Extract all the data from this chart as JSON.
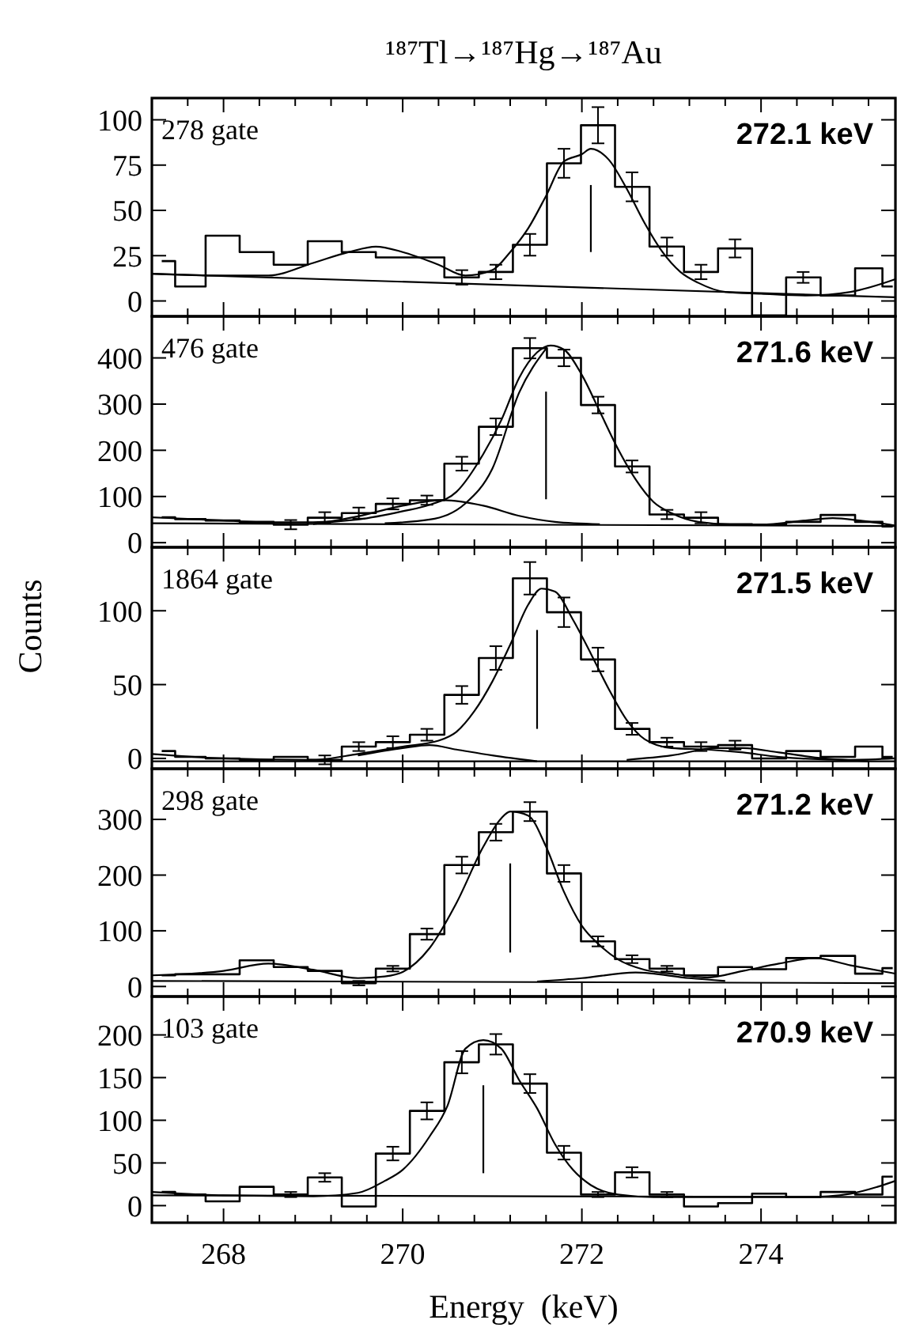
{
  "chart_data": [
    {
      "type": "step",
      "title": "¹⁸⁷Tl→¹⁸⁷Hg→¹⁸⁷Au",
      "annotations": [
        "278 gate",
        "272.1 keV"
      ],
      "tick_labels": "y",
      "series": [
        {
          "type": "step",
          "color": "#000000",
          "x": [
            267.31,
            267.61,
            267.99,
            268.37,
            268.75,
            269.13,
            269.51,
            269.89,
            270.27,
            270.66,
            271.04,
            271.42,
            271.8,
            272.18,
            272.56,
            272.95,
            273.33,
            273.71,
            274.09,
            274.47,
            274.86,
            275.24,
            275.47
          ],
          "values": [
            22,
            8,
            36,
            27,
            20,
            33,
            27,
            24,
            24,
            13,
            16,
            31,
            76,
            97,
            63,
            30,
            16,
            29,
            -8,
            13,
            3,
            18,
            8
          ],
          "errors": [
            null,
            null,
            null,
            null,
            null,
            null,
            null,
            null,
            null,
            4,
            4,
            6,
            8,
            10,
            8,
            5,
            4,
            5,
            null,
            3,
            null,
            null,
            null
          ]
        },
        {
          "type": "line",
          "color": "#000000",
          "x": [
            267.2,
            268,
            268.5,
            269,
            269.4,
            269.7,
            270,
            270.4,
            270.7,
            271,
            271.2,
            271.4,
            271.6,
            271.8,
            272,
            272.1,
            272.3,
            272.5,
            272.7,
            272.9,
            273.1,
            273.3,
            273.6,
            274,
            274.5,
            275,
            275.5
          ],
          "values": [
            15,
            14,
            14,
            21,
            27,
            30,
            27,
            20,
            14,
            17,
            27,
            40,
            58,
            77,
            81,
            84,
            78,
            62,
            43,
            27,
            16,
            10,
            5,
            4,
            3,
            5,
            12
          ]
        },
        {
          "type": "line",
          "color": "#000000",
          "x": [
            267.2,
            275.5
          ],
          "values": [
            15,
            2
          ]
        },
        {
          "type": "line",
          "color": "#000000",
          "x": [
            272.1,
            272.1
          ],
          "values": [
            27,
            64
          ]
        }
      ],
      "xlim": [
        267.2,
        275.5
      ],
      "xticks": [
        {
          "value": 267.6,
          "label": null
        },
        268,
        {
          "value": 268.4,
          "label": null
        },
        {
          "value": 268.8,
          "label": null
        },
        {
          "value": 269.2,
          "label": null
        },
        {
          "value": 269.6,
          "label": null
        },
        270,
        {
          "value": 270.4,
          "label": null
        },
        {
          "value": 270.8,
          "label": null
        },
        {
          "value": 271.2,
          "label": null
        },
        {
          "value": 271.6,
          "label": null
        },
        272,
        {
          "value": 272.4,
          "label": null
        },
        {
          "value": 272.8,
          "label": null
        },
        {
          "value": 273.2,
          "label": null
        },
        {
          "value": 273.6,
          "label": null
        },
        274,
        {
          "value": 274.4,
          "label": null
        },
        {
          "value": 274.8,
          "label": null
        },
        {
          "value": 275.2,
          "label": null
        }
      ],
      "ylim": [
        -8.5,
        112
      ],
      "yticks": [
        0,
        25,
        50,
        75,
        100
      ]
    },
    {
      "type": "step",
      "annotations": [
        "476 gate",
        "271.6 keV"
      ],
      "tick_labels": "y",
      "series": [
        {
          "type": "step",
          "color": "#000000",
          "x": [
            267.31,
            267.61,
            267.99,
            268.37,
            268.75,
            269.13,
            269.51,
            269.89,
            270.27,
            270.66,
            271.04,
            271.42,
            271.8,
            272.18,
            272.56,
            272.95,
            273.33,
            273.71,
            274.09,
            274.47,
            274.86,
            275.24,
            275.47
          ],
          "values": [
            55,
            51,
            48,
            45,
            39,
            54,
            64,
            84,
            92,
            171,
            251,
            421,
            400,
            298,
            165,
            61,
            54,
            40,
            39,
            45,
            60,
            45,
            35
          ],
          "errors": [
            null,
            null,
            null,
            null,
            10,
            12,
            12,
            12,
            10,
            15,
            18,
            22,
            18,
            18,
            13,
            10,
            12,
            null,
            null,
            null,
            null,
            null,
            null
          ]
        },
        {
          "type": "line",
          "color": "#000000",
          "x": [
            267.2,
            268,
            268.5,
            269,
            269.5,
            270,
            270.3,
            270.6,
            270.9,
            271.1,
            271.3,
            271.5,
            271.65,
            271.8,
            272,
            272.2,
            272.4,
            272.6,
            272.8,
            273,
            273.3,
            273.7,
            274,
            274.5,
            274.8,
            275.1,
            275.5
          ],
          "values": [
            55,
            48,
            44,
            44,
            50,
            68,
            82,
            110,
            192,
            265,
            357,
            412,
            427,
            418,
            363,
            284,
            204,
            137,
            88,
            64,
            45,
            39,
            39,
            48,
            53,
            48,
            37
          ]
        },
        {
          "type": "line",
          "color": "#000000",
          "x": [
            269.8,
            270.3,
            270.7,
            271,
            271.3,
            271.6
          ],
          "values": [
            42,
            50,
            85,
            160,
            325,
            420
          ]
        },
        {
          "type": "line",
          "color": "#000000",
          "x": [
            269,
            269.5,
            270,
            270.45,
            270.9,
            271.3,
            271.7,
            272.2
          ],
          "values": [
            40,
            57,
            80,
            92,
            80,
            58,
            45,
            40
          ]
        },
        {
          "type": "line",
          "color": "#000000",
          "x": [
            267.2,
            275.5
          ],
          "values": [
            42,
            36
          ]
        },
        {
          "type": "line",
          "color": "#000000",
          "x": [
            271.6,
            271.6
          ],
          "values": [
            94,
            327
          ]
        }
      ],
      "xlim": [
        267.2,
        275.5
      ],
      "xticks": [
        {
          "value": 267.6,
          "label": null
        },
        268,
        {
          "value": 268.4,
          "label": null
        },
        {
          "value": 268.8,
          "label": null
        },
        {
          "value": 269.2,
          "label": null
        },
        {
          "value": 269.6,
          "label": null
        },
        270,
        {
          "value": 270.4,
          "label": null
        },
        {
          "value": 270.8,
          "label": null
        },
        {
          "value": 271.2,
          "label": null
        },
        {
          "value": 271.6,
          "label": null
        },
        272,
        {
          "value": 272.4,
          "label": null
        },
        {
          "value": 272.8,
          "label": null
        },
        {
          "value": 273.2,
          "label": null
        },
        {
          "value": 273.6,
          "label": null
        },
        274,
        {
          "value": 274.4,
          "label": null
        },
        {
          "value": 274.8,
          "label": null
        },
        {
          "value": 275.2,
          "label": null
        }
      ],
      "ylim": [
        -10,
        490
      ],
      "yticks": [
        0,
        100,
        200,
        300,
        400
      ]
    },
    {
      "type": "step",
      "ylabel": "Counts",
      "annotations": [
        "1864 gate",
        "271.5 keV"
      ],
      "tick_labels": "y",
      "series": [
        {
          "type": "step",
          "color": "#000000",
          "x": [
            267.31,
            267.61,
            267.99,
            268.37,
            268.75,
            269.13,
            269.51,
            269.89,
            270.27,
            270.66,
            271.04,
            271.42,
            271.8,
            272.18,
            272.56,
            272.95,
            273.33,
            273.71,
            274.09,
            274.47,
            274.86,
            275.24,
            275.47
          ],
          "values": [
            5,
            1,
            0,
            -1,
            1,
            -1,
            8,
            11,
            16,
            43,
            68,
            122,
            99,
            67,
            20,
            11,
            8,
            9,
            0,
            5,
            1,
            8,
            1
          ],
          "errors": [
            null,
            null,
            null,
            null,
            null,
            3,
            3,
            4,
            4,
            6,
            8,
            11,
            10,
            8,
            4,
            3,
            3,
            3,
            null,
            null,
            null,
            null,
            null
          ]
        },
        {
          "type": "line",
          "color": "#000000",
          "x": [
            267.2,
            268,
            269,
            269.5,
            270,
            270.4,
            270.6,
            270.8,
            271,
            271.2,
            271.4,
            271.55,
            271.7,
            271.9,
            272.1,
            272.3,
            272.5,
            272.7,
            273,
            273.4,
            273.8,
            274.2,
            275,
            275.5
          ],
          "values": [
            3,
            0,
            -1,
            3,
            8,
            12,
            18,
            32,
            52,
            77,
            104,
            115,
            113,
            94,
            71,
            47,
            26,
            13,
            7,
            6,
            4,
            1,
            -1,
            0
          ]
        },
        {
          "type": "line",
          "color": "#000000",
          "x": [
            269.5,
            270,
            270.3,
            270.6,
            271,
            271.5
          ],
          "values": [
            2,
            7,
            9,
            6,
            2,
            -2
          ]
        },
        {
          "type": "line",
          "color": "#000000",
          "x": [
            272.5,
            273,
            273.5,
            273.8,
            274.2,
            274.7,
            275.2
          ],
          "values": [
            -1,
            2,
            7,
            7,
            4,
            0,
            -2
          ]
        },
        {
          "type": "line",
          "color": "#000000",
          "x": [
            267.2,
            275.5
          ],
          "values": [
            -2,
            -2
          ]
        },
        {
          "type": "line",
          "color": "#000000",
          "x": [
            271.5,
            271.5
          ],
          "values": [
            20,
            87
          ]
        }
      ],
      "xlim": [
        267.2,
        275.5
      ],
      "xticks": [
        {
          "value": 267.6,
          "label": null
        },
        268,
        {
          "value": 268.4,
          "label": null
        },
        {
          "value": 268.8,
          "label": null
        },
        {
          "value": 269.2,
          "label": null
        },
        {
          "value": 269.6,
          "label": null
        },
        270,
        {
          "value": 270.4,
          "label": null
        },
        {
          "value": 270.8,
          "label": null
        },
        {
          "value": 271.2,
          "label": null
        },
        {
          "value": 271.6,
          "label": null
        },
        272,
        {
          "value": 272.4,
          "label": null
        },
        {
          "value": 272.8,
          "label": null
        },
        {
          "value": 273.2,
          "label": null
        },
        {
          "value": 273.6,
          "label": null
        },
        274,
        {
          "value": 274.4,
          "label": null
        },
        {
          "value": 274.8,
          "label": null
        },
        {
          "value": 275.2,
          "label": null
        }
      ],
      "ylim": [
        -7,
        143
      ],
      "yticks": [
        0,
        50,
        100
      ]
    },
    {
      "type": "step",
      "annotations": [
        "298 gate",
        "271.2 keV"
      ],
      "tick_labels": "y",
      "series": [
        {
          "type": "step",
          "color": "#000000",
          "x": [
            267.31,
            267.61,
            267.99,
            268.37,
            268.75,
            269.13,
            269.51,
            269.89,
            270.27,
            270.66,
            271.04,
            271.42,
            271.8,
            272.18,
            272.56,
            272.95,
            273.33,
            273.71,
            274.09,
            274.47,
            274.86,
            275.24,
            275.47
          ],
          "values": [
            20,
            22,
            22,
            47,
            35,
            28,
            6,
            32,
            94,
            218,
            277,
            314,
            203,
            81,
            49,
            32,
            20,
            35,
            31,
            51,
            55,
            23,
            33
          ],
          "errors": [
            null,
            null,
            null,
            null,
            null,
            null,
            4,
            5,
            10,
            15,
            15,
            17,
            15,
            9,
            7,
            5,
            null,
            null,
            null,
            null,
            null,
            null,
            null
          ]
        },
        {
          "type": "line",
          "color": "#000000",
          "x": [
            267.2,
            268,
            268.5,
            269,
            269.5,
            269.8,
            270,
            270.3,
            270.6,
            270.9,
            271.1,
            271.2,
            271.4,
            271.6,
            271.8,
            272,
            272.2,
            272.4,
            272.7,
            273,
            273.4,
            273.8,
            274.2,
            274.6,
            275,
            275.5
          ],
          "values": [
            20,
            28,
            41,
            30,
            15,
            18,
            26,
            69,
            150,
            251,
            302,
            314,
            307,
            251,
            170,
            109,
            74,
            49,
            30,
            23,
            16,
            28,
            41,
            51,
            38,
            23
          ]
        },
        {
          "type": "line",
          "color": "#000000",
          "x": [
            271.5,
            272,
            272.6,
            273.2,
            273.6
          ],
          "values": [
            9,
            15,
            25,
            15,
            10
          ]
        },
        {
          "type": "line",
          "color": "#000000",
          "x": [
            267.2,
            275.5
          ],
          "values": [
            10,
            6
          ]
        },
        {
          "type": "line",
          "color": "#000000",
          "x": [
            271.2,
            271.2
          ],
          "values": [
            61,
            221
          ]
        }
      ],
      "xlim": [
        267.2,
        275.5
      ],
      "xticks": [
        {
          "value": 267.6,
          "label": null
        },
        268,
        {
          "value": 268.4,
          "label": null
        },
        {
          "value": 268.8,
          "label": null
        },
        {
          "value": 269.2,
          "label": null
        },
        {
          "value": 269.6,
          "label": null
        },
        270,
        {
          "value": 270.4,
          "label": null
        },
        {
          "value": 270.8,
          "label": null
        },
        {
          "value": 271.2,
          "label": null
        },
        {
          "value": 271.6,
          "label": null
        },
        272,
        {
          "value": 272.4,
          "label": null
        },
        {
          "value": 272.8,
          "label": null
        },
        {
          "value": 273.2,
          "label": null
        },
        {
          "value": 273.6,
          "label": null
        },
        274,
        {
          "value": 274.4,
          "label": null
        },
        {
          "value": 274.8,
          "label": null
        },
        {
          "value": 275.2,
          "label": null
        }
      ],
      "ylim": [
        -18,
        391
      ],
      "yticks": [
        0,
        100,
        200,
        300
      ]
    },
    {
      "type": "step",
      "xlabel": "Energy  (keV)",
      "annotations": [
        "103 gate",
        "270.9 keV"
      ],
      "series": [
        {
          "type": "step",
          "color": "#000000",
          "x": [
            267.31,
            267.61,
            267.99,
            268.37,
            268.75,
            269.13,
            269.51,
            269.89,
            270.27,
            270.66,
            271.04,
            271.42,
            271.8,
            272.18,
            272.56,
            272.95,
            273.33,
            273.71,
            274.09,
            274.47,
            274.86,
            275.24,
            275.47
          ],
          "values": [
            16,
            13,
            5,
            22,
            13,
            33,
            -1,
            61,
            111,
            168,
            189,
            143,
            62,
            13,
            39,
            13,
            -1,
            3,
            14,
            10,
            16,
            13,
            34
          ],
          "errors": [
            null,
            null,
            null,
            null,
            3,
            5,
            null,
            8,
            10,
            13,
            12,
            11,
            8,
            3,
            6,
            3,
            null,
            null,
            null,
            null,
            null,
            null,
            null
          ]
        },
        {
          "type": "line",
          "color": "#000000",
          "x": [
            267.2,
            268,
            269,
            269.5,
            269.8,
            270,
            270.3,
            270.5,
            270.7,
            270.9,
            271.1,
            271.3,
            271.5,
            271.7,
            271.9,
            272.1,
            272.4,
            272.8,
            273.5,
            274.5,
            275,
            275.3,
            275.5
          ],
          "values": [
            16,
            12,
            11,
            15,
            29,
            42,
            81,
            117,
            184,
            194,
            184,
            147,
            114,
            72,
            42,
            24,
            13,
            10,
            10,
            10,
            14,
            22,
            29
          ]
        },
        {
          "type": "line",
          "color": "#000000",
          "x": [
            267.2,
            275.5
          ],
          "values": [
            12,
            10
          ]
        },
        {
          "type": "line",
          "color": "#000000",
          "x": [
            270.9,
            270.9
          ],
          "values": [
            38,
            141
          ]
        }
      ],
      "xlim": [
        267.2,
        275.5
      ],
      "xticks": [
        {
          "value": 267.6,
          "label": null
        },
        268,
        {
          "value": 268.4,
          "label": null
        },
        {
          "value": 268.8,
          "label": null
        },
        {
          "value": 269.2,
          "label": null
        },
        {
          "value": 269.6,
          "label": null
        },
        270,
        {
          "value": 270.4,
          "label": null
        },
        {
          "value": 270.8,
          "label": null
        },
        {
          "value": 271.2,
          "label": null
        },
        {
          "value": 271.6,
          "label": null
        },
        272,
        {
          "value": 272.4,
          "label": null
        },
        {
          "value": 272.8,
          "label": null
        },
        {
          "value": 273.2,
          "label": null
        },
        {
          "value": 273.6,
          "label": null
        },
        274,
        {
          "value": 274.4,
          "label": null
        },
        {
          "value": 274.8,
          "label": null
        },
        {
          "value": 275.2,
          "label": null
        }
      ],
      "ylim": [
        -20,
        245
      ],
      "yticks": [
        0,
        50,
        100,
        150,
        200
      ]
    }
  ]
}
